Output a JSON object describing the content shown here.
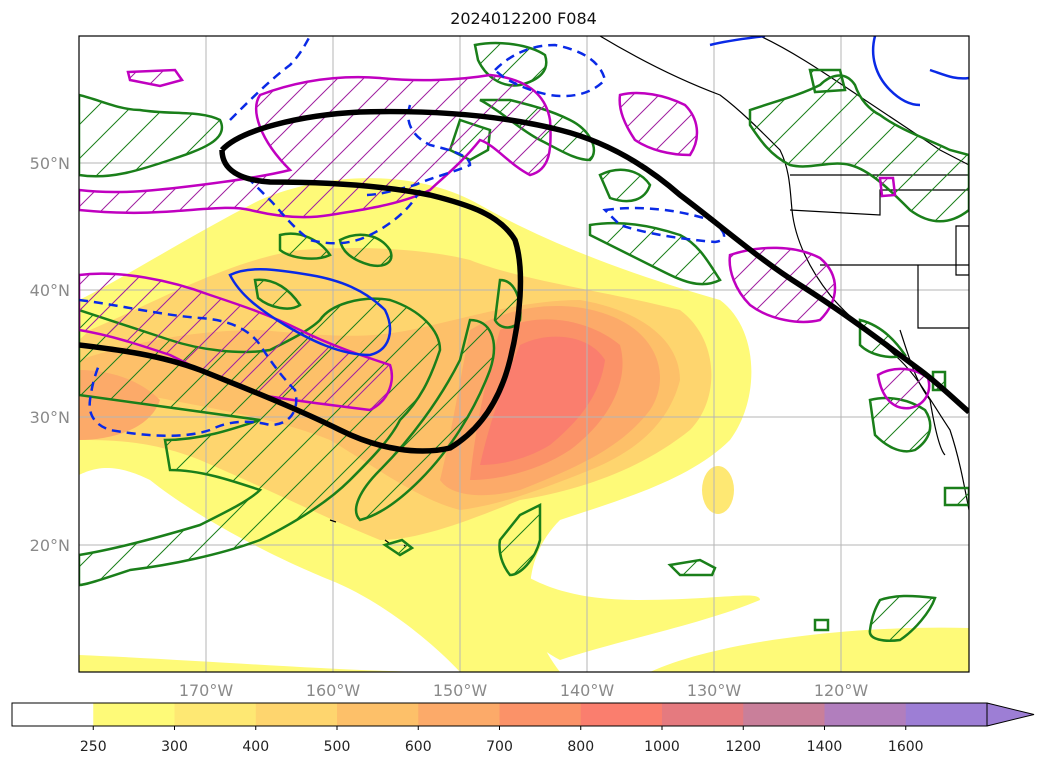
{
  "title": "2024012200 F084",
  "map": {
    "lat_labels": [
      "50°N",
      "40°N",
      "30°N",
      "20°N"
    ],
    "lon_labels": [
      "170°W",
      "160°W",
      "150°W",
      "140°W",
      "130°W",
      "120°W"
    ],
    "extent": {
      "lon_min": -180,
      "lon_max": -110,
      "lat_min": 10,
      "lat_max": 60
    },
    "layers": [
      {
        "name": "ivt-shading",
        "kind": "filled-contours",
        "colormap": "yellow-to-purple"
      },
      {
        "name": "jet-contour",
        "color": "#000000",
        "style": "solid-thick"
      },
      {
        "name": "green-hatched-contours",
        "color": "#1a7f1a",
        "style": "hatched"
      },
      {
        "name": "magenta-hatched-contours",
        "color": "#c000c0",
        "style": "hatched"
      },
      {
        "name": "blue-contours",
        "color": "#0a2ae6",
        "style": "solid-and-dashed"
      }
    ]
  },
  "colorbar": {
    "ticks": [
      "250",
      "300",
      "400",
      "500",
      "600",
      "700",
      "800",
      "1000",
      "1200",
      "1400",
      "1600"
    ],
    "colors": [
      "#ffffff",
      "#fefa78",
      "#fee873",
      "#fed56e",
      "#fdc069",
      "#fcaa69",
      "#fb9268",
      "#fa7e6e",
      "#e57a7f",
      "#c97f9a",
      "#b17ebd",
      "#9d7ed5"
    ],
    "extend": "max"
  }
}
